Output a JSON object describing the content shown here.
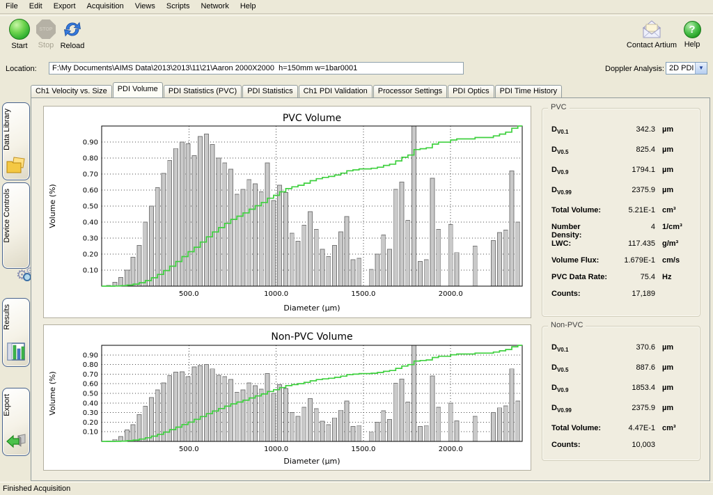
{
  "menu": {
    "items": [
      "File",
      "Edit",
      "Export",
      "Acquisition",
      "Views",
      "Scripts",
      "Network",
      "Help"
    ]
  },
  "toolbar": {
    "start_label": "Start",
    "stop_label": "Stop",
    "stop_icon_text": "STOP",
    "reload_label": "Reload",
    "contact_label": "Contact Artium",
    "help_label": "Help",
    "help_glyph": "?"
  },
  "location": {
    "label": "Location:",
    "value": "F:\\My Documents\\AIMS Data\\2013\\2013\\11\\21\\Aaron 2000X2000  h=150mm w=1bar0001"
  },
  "doppler": {
    "label": "Doppler Analysis:",
    "value": "2D PDI"
  },
  "tabs": {
    "items": [
      "Ch1 Velocity vs. Size",
      "PDI Volume",
      "PDI Statistics (PVC)",
      "PDI Statistics",
      "Ch1 PDI Validation",
      "Processor Settings",
      "PDI Optics",
      "PDI Time History"
    ],
    "active_index": 1
  },
  "sidebar": {
    "items": [
      {
        "label": "Data Library",
        "icon": "folders-icon"
      },
      {
        "label": "Device Controls",
        "icon": "gears-magnifier-icon"
      },
      {
        "label": "Results",
        "icon": "bar-chart-icon"
      },
      {
        "label": "Export",
        "icon": "export-arrow-icon"
      }
    ]
  },
  "stats_panels": [
    {
      "id": "pvc",
      "title": "PVC",
      "rows": [
        {
          "base": "D",
          "sub": "V0.1",
          "value": "342.3",
          "unit": "µm"
        },
        {
          "base": "D",
          "sub": "V0.5",
          "value": "825.4",
          "unit": "µm"
        },
        {
          "base": "D",
          "sub": "V0.9",
          "value": "1794.1",
          "unit": "µm"
        },
        {
          "base": "D",
          "sub": "V0.99",
          "value": "2375.9",
          "unit": "µm"
        },
        {
          "label": "Total Volume:",
          "value": "5.21E-1",
          "unit": "cm³"
        },
        {
          "label": "Number Density:",
          "value": "4",
          "unit": "1/cm³"
        },
        {
          "label": "LWC:",
          "value": "117.435",
          "unit": "g/m³"
        },
        {
          "label": "Volume Flux:",
          "value": "1.679E-1",
          "unit": "cm/s"
        },
        {
          "label": "PVC Data Rate:",
          "value": "75.4",
          "unit": "Hz"
        },
        {
          "label": "Counts:",
          "value": "17,189",
          "unit": ""
        }
      ]
    },
    {
      "id": "nonpvc",
      "title": "Non-PVC",
      "rows": [
        {
          "base": "D",
          "sub": "V0.1",
          "value": "370.6",
          "unit": "µm"
        },
        {
          "base": "D",
          "sub": "V0.5",
          "value": "887.6",
          "unit": "µm"
        },
        {
          "base": "D",
          "sub": "V0.9",
          "value": "1853.4",
          "unit": "µm"
        },
        {
          "base": "D",
          "sub": "V0.99",
          "value": "2375.9",
          "unit": "µm"
        },
        {
          "label": "Total Volume:",
          "value": "4.47E-1",
          "unit": "cm³"
        },
        {
          "label": "Counts:",
          "value": "10,003",
          "unit": ""
        }
      ]
    }
  ],
  "status": {
    "text": "Finished Acquisition"
  },
  "colors": {
    "window_bg": "#ece9d8",
    "bar_fill": "#c9c9c9",
    "bar_stroke": "#787878",
    "cumulative_line": "#3fd03f",
    "grid": "#444444"
  },
  "chart_data": [
    {
      "type": "bar",
      "title": "PVC Volume",
      "xlabel": "Diameter (µm)",
      "ylabel": "Volume (%)",
      "xlim": [
        0,
        2410
      ],
      "ylim": [
        0,
        1.0
      ],
      "xticks": [
        500,
        1000,
        1500,
        2000
      ],
      "yticks": [
        0.1,
        0.2,
        0.3,
        0.4,
        0.5,
        0.6,
        0.7,
        0.8,
        0.9
      ],
      "grid": "dashed",
      "legend": "none",
      "x_start": 40,
      "x_step": 35,
      "series": [
        {
          "name": "volume-histogram",
          "style": "bars",
          "values": [
            0.005,
            0.025,
            0.055,
            0.1,
            0.18,
            0.255,
            0.4,
            0.5,
            0.615,
            0.705,
            0.785,
            0.86,
            0.9,
            0.89,
            0.815,
            0.935,
            0.95,
            0.885,
            0.8,
            0.77,
            0.73,
            0.575,
            0.605,
            0.665,
            0.64,
            0.59,
            0.77,
            0.535,
            0.63,
            0.585,
            0.33,
            0.28,
            0.38,
            0.465,
            0.355,
            0.23,
            0.185,
            0.255,
            0.34,
            0.435,
            0.165,
            0.175,
            0,
            0.105,
            0.2,
            0.32,
            0.23,
            0.605,
            0.65,
            0.41,
            1.0,
            0.155,
            0.165,
            0.675,
            0.355,
            0,
            0.385,
            0.21,
            0,
            0,
            0.25,
            0,
            0,
            0.285,
            0.335,
            0.35,
            0.72,
            0.4
          ]
        },
        {
          "name": "cumulative-volume-fraction",
          "style": "step-line",
          "derived": "normalized cumulative sum of histogram, 0 to 1"
        }
      ]
    },
    {
      "type": "bar",
      "title": "Non-PVC Volume",
      "xlabel": "Diameter (µm)",
      "ylabel": "Volume (%)",
      "xlim": [
        0,
        2410
      ],
      "ylim": [
        0,
        1.0
      ],
      "xticks": [
        500,
        1000,
        1500,
        2000
      ],
      "yticks": [
        0.1,
        0.2,
        0.3,
        0.4,
        0.5,
        0.6,
        0.7,
        0.8,
        0.9
      ],
      "grid": "dashed",
      "legend": "none",
      "x_start": 40,
      "x_step": 35,
      "series": [
        {
          "name": "volume-histogram",
          "style": "bars",
          "values": [
            0.005,
            0.02,
            0.05,
            0.12,
            0.175,
            0.28,
            0.365,
            0.455,
            0.535,
            0.61,
            0.685,
            0.72,
            0.725,
            0.675,
            0.775,
            0.79,
            0.8,
            0.755,
            0.69,
            0.675,
            0.645,
            0.51,
            0.535,
            0.61,
            0.58,
            0.545,
            0.705,
            0.5,
            0.59,
            0.55,
            0.3,
            0.26,
            0.355,
            0.445,
            0.34,
            0.21,
            0.175,
            0.245,
            0.325,
            0.42,
            0.155,
            0.165,
            0,
            0.1,
            0.2,
            0.32,
            0.23,
            0.605,
            0.65,
            0.41,
            1.0,
            0.155,
            0.165,
            0.68,
            0.355,
            0,
            0.4,
            0.215,
            0,
            0,
            0.26,
            0,
            0,
            0.3,
            0.35,
            0.37,
            0.755,
            0.42
          ]
        },
        {
          "name": "cumulative-volume-fraction",
          "style": "step-line",
          "derived": "normalized cumulative sum of histogram, 0 to 1"
        }
      ]
    }
  ]
}
